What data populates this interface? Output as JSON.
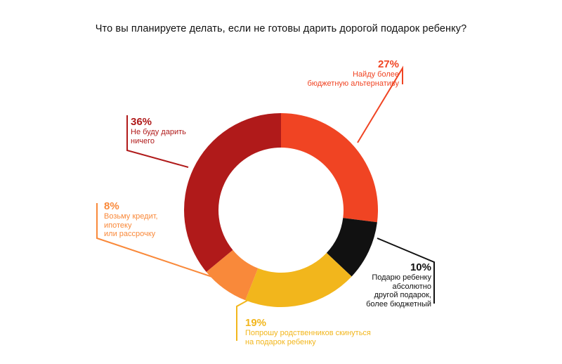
{
  "title": "Что вы планируете делать, если не готовы дарить дорогой подарок ребенку?",
  "chart_data": {
    "type": "pie",
    "donut": true,
    "title": "Что вы планируете делать, если не готовы дарить дорогой подарок ребенку?",
    "slices": [
      {
        "label": "Найду более\nбюджетную альтернативу",
        "value": 27,
        "pct_label": "27%",
        "color": "#f04423"
      },
      {
        "label": "Подарю ребенку\nабсолютно\nдругой подарок,\nболее бюджетный",
        "value": 10,
        "pct_label": "10%",
        "color": "#111111"
      },
      {
        "label": "Попрошу родственников скинуться\nна подарок ребенку",
        "value": 19,
        "pct_label": "19%",
        "color": "#f2b61c"
      },
      {
        "label": "Возьму кредит,\nипотеку\nили рассрочку",
        "value": 8,
        "pct_label": "8%",
        "color": "#f9893a"
      },
      {
        "label": "Не буду дарить\nничего",
        "value": 36,
        "pct_label": "36%",
        "color": "#b01a1a"
      }
    ]
  }
}
